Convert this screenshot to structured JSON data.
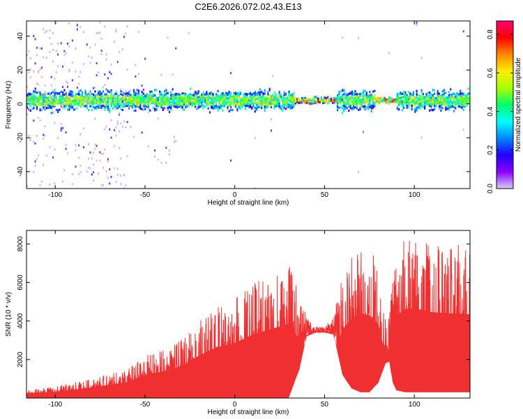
{
  "title": "C2E6.2026.072.02.43.E13",
  "chart_data": [
    {
      "type": "heatmap",
      "title": "C2E6.2026.072.02.43.E13",
      "xlabel": "Height of straight line (km)",
      "ylabel": "Frequency (Hz)",
      "xlim": [
        -116,
        131
      ],
      "ylim": [
        -50,
        49
      ],
      "xticks": [
        -100,
        -50,
        0,
        50,
        100
      ],
      "xtick_labels": [
        "-100",
        "-50",
        "0",
        "50",
        "100"
      ],
      "yticks": [
        -40,
        -20,
        0,
        20,
        40
      ],
      "ytick_labels": [
        "-40",
        "-20",
        "0",
        "20",
        "40"
      ],
      "band_center_hz": 2,
      "band_halfwidth_hz": 6,
      "colorbar": {
        "label": "Normalized spectral amplitude",
        "range": [
          0.0,
          0.87
        ],
        "ticks": [
          0.0,
          0.2,
          0.4,
          0.6,
          0.8
        ],
        "tick_labels": [
          "0.0",
          "0.2",
          "0.4",
          "0.6",
          "0.8"
        ],
        "colors": [
          "#d9ccff",
          "#8a00ff",
          "#2200ff",
          "#0088ff",
          "#00ffff",
          "#00ff66",
          "#aaff00",
          "#ffee00",
          "#ff8800",
          "#ff0000",
          "#ff0077"
        ]
      }
    },
    {
      "type": "line",
      "xlabel": "Height of straight line (km)",
      "ylabel": "SNR (10 * v/v)",
      "xlim": [
        -116,
        131
      ],
      "ylim": [
        0,
        8700
      ],
      "xticks": [
        -100,
        -50,
        0,
        50,
        100
      ],
      "xtick_labels": [
        "-100",
        "-50",
        "0",
        "50",
        "100"
      ],
      "yticks": [
        2000,
        4000,
        6000,
        8000
      ],
      "ytick_labels": [
        "2000",
        "4000",
        "6000",
        "8000"
      ],
      "color": "#f03030",
      "envelope": {
        "x": [
          -116,
          -100,
          -80,
          -60,
          -50,
          -40,
          -30,
          -20,
          -10,
          0,
          10,
          20,
          30,
          36,
          40,
          45,
          50,
          55,
          60,
          65,
          70,
          75,
          80,
          84,
          86,
          88,
          90,
          95,
          100,
          110,
          120,
          131
        ],
        "low": [
          0,
          0,
          0,
          0,
          0,
          0,
          0,
          0,
          0,
          0,
          0,
          0,
          0,
          1500,
          3200,
          3400,
          3400,
          3300,
          1200,
          500,
          300,
          300,
          800,
          1800,
          1900,
          800,
          400,
          300,
          300,
          300,
          300,
          300
        ],
        "high": [
          400,
          600,
          1000,
          1500,
          2200,
          2500,
          3000,
          4000,
          4800,
          5200,
          6000,
          6500,
          7000,
          5500,
          4200,
          3700,
          3700,
          4200,
          6500,
          7500,
          8000,
          7800,
          7000,
          4000,
          4200,
          6500,
          7800,
          8400,
          8500,
          8100,
          8000,
          7900
        ]
      }
    }
  ]
}
